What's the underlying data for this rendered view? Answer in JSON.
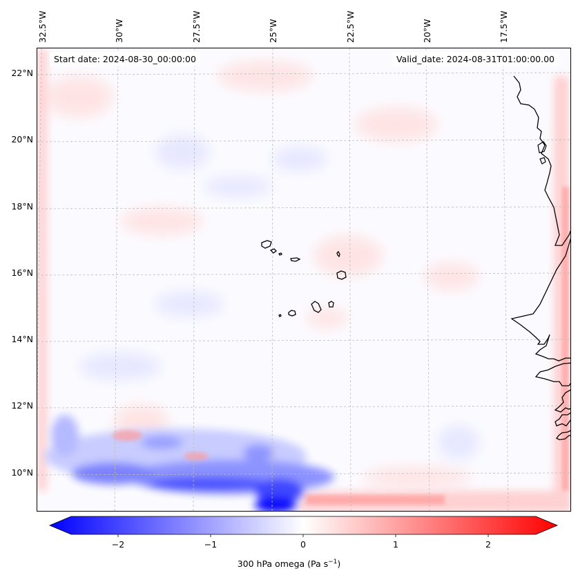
{
  "header": {
    "start_date": "Start date: 2024-08-30_00:00:00",
    "valid_date": "Valid_date: 2024-08-31T01:00:00.00"
  },
  "axes": {
    "longitude_labels": [
      "32.5°W",
      "30°W",
      "27.5°W",
      "25°W",
      "22.5°W",
      "20°W",
      "17.5°W"
    ],
    "latitude_labels": [
      "22°N",
      "20°N",
      "18°N",
      "16°N",
      "14°N",
      "12°N",
      "10°N"
    ]
  },
  "colorbar": {
    "ticks": [
      "−2",
      "−1",
      "0",
      "1",
      "2"
    ],
    "range": [
      -2.6,
      2.6
    ],
    "label": "300 hPa omega (Pa s",
    "label_exp": "−1",
    "label_close": ")",
    "colors": {
      "negative": "#0000ff",
      "neutral": "#ffffff",
      "positive": "#ff0000"
    }
  },
  "map": {
    "variable": "omega",
    "level": "300 hPa",
    "features": [
      "cabo-verde-islands",
      "west-africa-coastline"
    ]
  }
}
